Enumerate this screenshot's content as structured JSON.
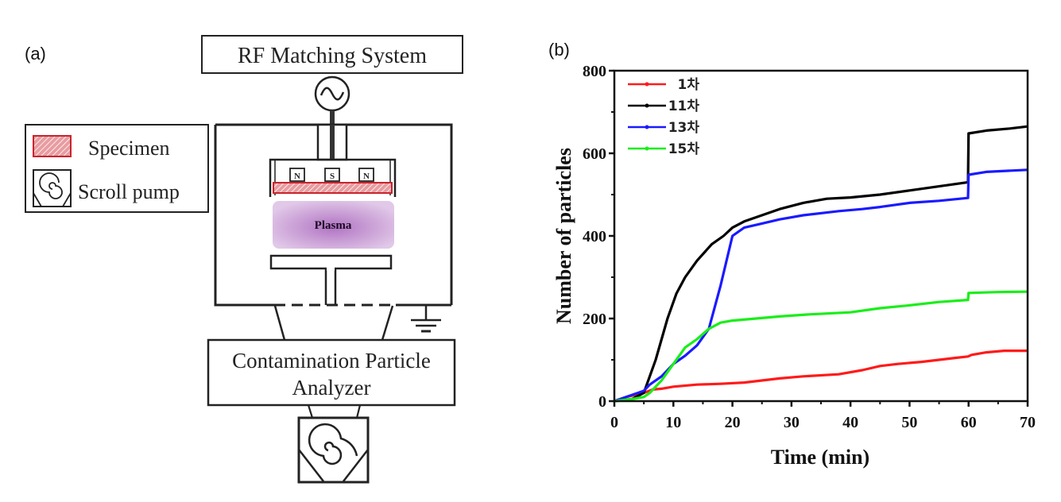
{
  "panel_a": {
    "label": "(a)",
    "rf_box": "RF Matching System",
    "legend": {
      "specimen": "Specimen",
      "scroll_pump": "Scroll pump"
    },
    "magnets": [
      "N",
      "S",
      "N"
    ],
    "plasma": "Plasma",
    "analyzer_line1": "Contamination Particle",
    "analyzer_line2": "Analyzer",
    "colors": {
      "specimen": "#c8242c",
      "plasma": "#a35bb8"
    }
  },
  "panel_b": {
    "label": "(b)"
  },
  "chart_data": {
    "type": "line",
    "title": "",
    "xlabel": "Time (min)",
    "ylabel": "Number of particles",
    "xlim": [
      0,
      70
    ],
    "ylim": [
      0,
      800
    ],
    "xticks": [
      0,
      10,
      20,
      30,
      40,
      50,
      60,
      70
    ],
    "xtick_labels": [
      "0",
      "10",
      "20",
      "30",
      "40",
      "50",
      "60",
      "70"
    ],
    "yticks": [
      0,
      200,
      400,
      600,
      800
    ],
    "ytick_labels": [
      "0",
      "200",
      "400",
      "600",
      "800"
    ],
    "grid": false,
    "legend_position": "top-left",
    "series": [
      {
        "name": "1차",
        "color": "#ff1a1a",
        "x": [
          0,
          2,
          5,
          6.5,
          8,
          10,
          14,
          18,
          22,
          25,
          28,
          32,
          38,
          42,
          45,
          48,
          52,
          55,
          58,
          59.9,
          60.5,
          63,
          66,
          70
        ],
        "y": [
          0,
          10,
          20,
          28,
          30,
          35,
          40,
          42,
          45,
          50,
          55,
          60,
          65,
          75,
          85,
          90,
          95,
          100,
          105,
          108,
          112,
          118,
          122,
          122
        ]
      },
      {
        "name": "11차",
        "color": "#000000",
        "x": [
          0,
          3,
          5,
          7,
          9,
          10.5,
          12,
          14,
          16.5,
          18.5,
          20,
          22,
          25,
          28,
          32,
          36,
          40,
          45,
          50,
          55,
          59.9,
          60,
          63,
          67,
          70
        ],
        "y": [
          0,
          5,
          20,
          100,
          200,
          260,
          300,
          340,
          380,
          400,
          420,
          435,
          450,
          465,
          480,
          490,
          493,
          500,
          510,
          520,
          530,
          648,
          655,
          660,
          665
        ]
      },
      {
        "name": "13차",
        "color": "#1a1aff",
        "x": [
          0,
          2,
          4,
          5,
          6,
          8,
          10,
          12,
          14,
          16,
          18,
          20,
          22,
          25,
          28,
          32,
          38,
          42,
          45,
          50,
          55,
          59.9,
          60,
          63,
          70
        ],
        "y": [
          0,
          10,
          20,
          25,
          40,
          60,
          90,
          110,
          135,
          175,
          280,
          400,
          420,
          430,
          440,
          450,
          460,
          465,
          470,
          480,
          485,
          492,
          548,
          555,
          560
        ]
      },
      {
        "name": "15차",
        "color": "#1aee1a",
        "x": [
          0,
          3,
          5,
          6,
          8,
          10,
          12,
          14,
          16,
          18,
          20,
          24,
          28,
          33,
          40,
          45,
          50,
          55,
          59.9,
          60,
          65,
          70
        ],
        "y": [
          0,
          5,
          10,
          20,
          50,
          90,
          130,
          150,
          175,
          190,
          195,
          200,
          205,
          210,
          215,
          225,
          232,
          240,
          245,
          262,
          264,
          265
        ]
      }
    ]
  }
}
